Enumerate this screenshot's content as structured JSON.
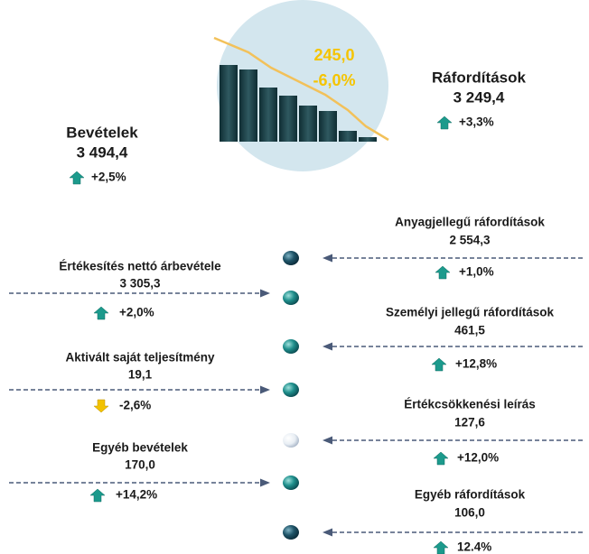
{
  "center": {
    "value": "245,0",
    "change": "-6,0%"
  },
  "income": {
    "title": "Bevételek",
    "value": "3 494,4",
    "change": "+2,5%"
  },
  "expenses": {
    "title": "Ráfordítások",
    "value": "3 249,4",
    "change": "+3,3%"
  },
  "left_items": [
    {
      "title": "Értékesítés nettó árbevétele",
      "value": "3 305,3",
      "change": "+2,0%"
    },
    {
      "title": "Aktivált saját teljesítmény",
      "value": "19,1",
      "change": "-2,6%"
    },
    {
      "title": "Egyéb bevételek",
      "value": "170,0",
      "change": "+14,2%"
    }
  ],
  "right_items": [
    {
      "title": "Anyagjellegű ráfordítások",
      "value": "2 554,3",
      "change": "+1,0%"
    },
    {
      "title": "Személyi jellegű ráfordítások",
      "value": "461,5",
      "change": "+12,8%"
    },
    {
      "title": "Értékcsökkenési leírás",
      "value": "127,6",
      "change": "+12,0%"
    },
    {
      "title": "Egyéb ráfordítások",
      "value": "106,0",
      "change": "12.4%"
    }
  ]
}
